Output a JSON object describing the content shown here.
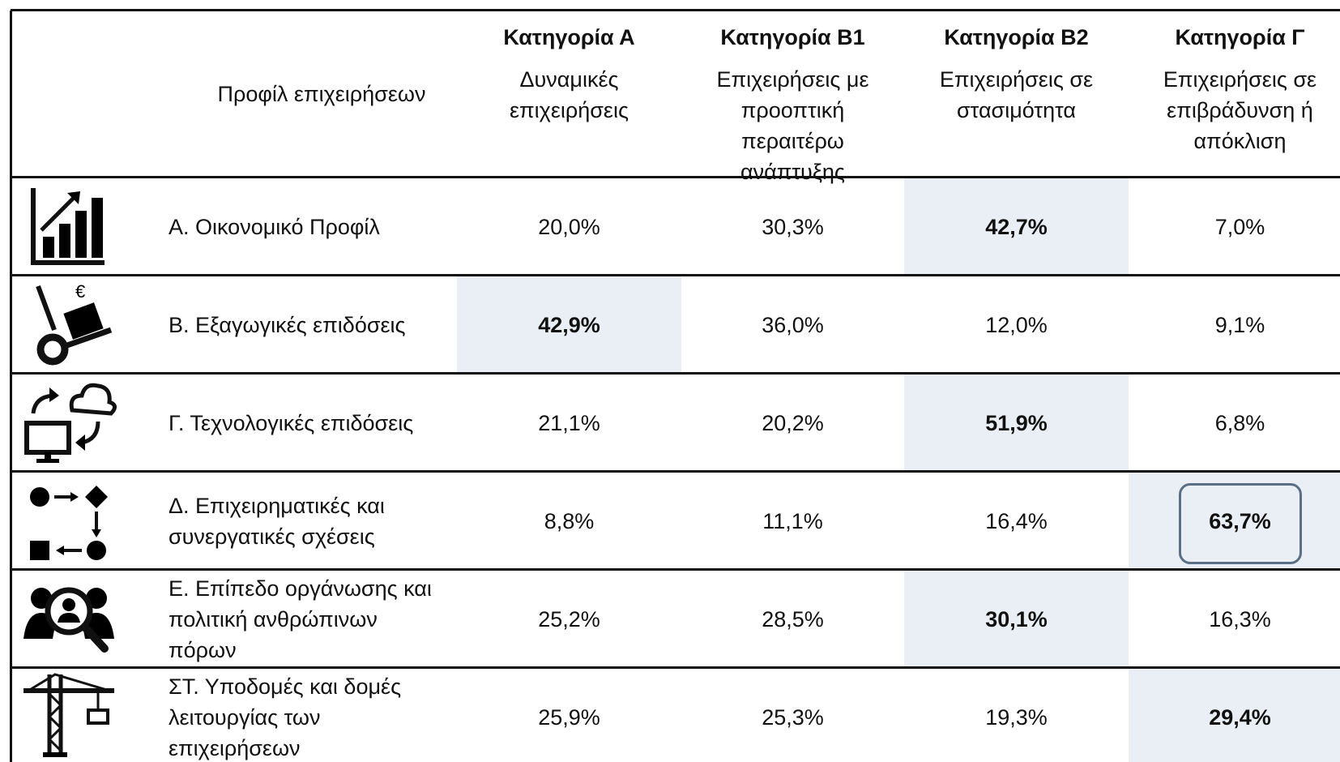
{
  "header": {
    "profile_label": "Προφίλ επιχειρήσεων",
    "columns": [
      {
        "title": "Κατηγορία Α",
        "subtitle": "Δυναμικές επιχειρήσεις"
      },
      {
        "title": "Κατηγορία Β1",
        "subtitle": "Επιχειρήσεις με προοπτική περαιτέρω ανάπτυξης"
      },
      {
        "title": "Κατηγορία Β2",
        "subtitle": "Επιχειρήσεις σε στασιμότητα"
      },
      {
        "title": "Κατηγορία Γ",
        "subtitle": "Επιχειρήσεις σε επιβράδυνση ή απόκλιση"
      }
    ]
  },
  "rows": [
    {
      "label": "Α. Οικονομικό Προφίλ",
      "values": [
        "20,0%",
        "30,3%",
        "42,7%",
        "7,0%"
      ],
      "highlight": 2
    },
    {
      "label": "Β. Εξαγωγικές επιδόσεις",
      "values": [
        "42,9%",
        "36,0%",
        "12,0%",
        "9,1%"
      ],
      "highlight": 0
    },
    {
      "label": "Γ. Τεχνολογικές επιδόσεις",
      "values": [
        "21,1%",
        "20,2%",
        "51,9%",
        "6,8%"
      ],
      "highlight": 2
    },
    {
      "label": "Δ. Επιχειρηματικές και συνεργατικές σχέσεις",
      "values": [
        "8,8%",
        "11,1%",
        "16,4%",
        "63,7%"
      ],
      "highlight": 3,
      "boxed": true
    },
    {
      "label": "Ε. Επίπεδο οργάνωσης και πολιτική ανθρώπινων πόρων",
      "values": [
        "25,2%",
        "28,5%",
        "30,1%",
        "16,3%"
      ],
      "highlight": 2
    },
    {
      "label": "ΣΤ. Υποδομές και δομές λειτουργίας των επιχειρήσεων",
      "values": [
        "25,9%",
        "25,3%",
        "19,3%",
        "29,4%"
      ],
      "highlight": 3
    }
  ]
}
